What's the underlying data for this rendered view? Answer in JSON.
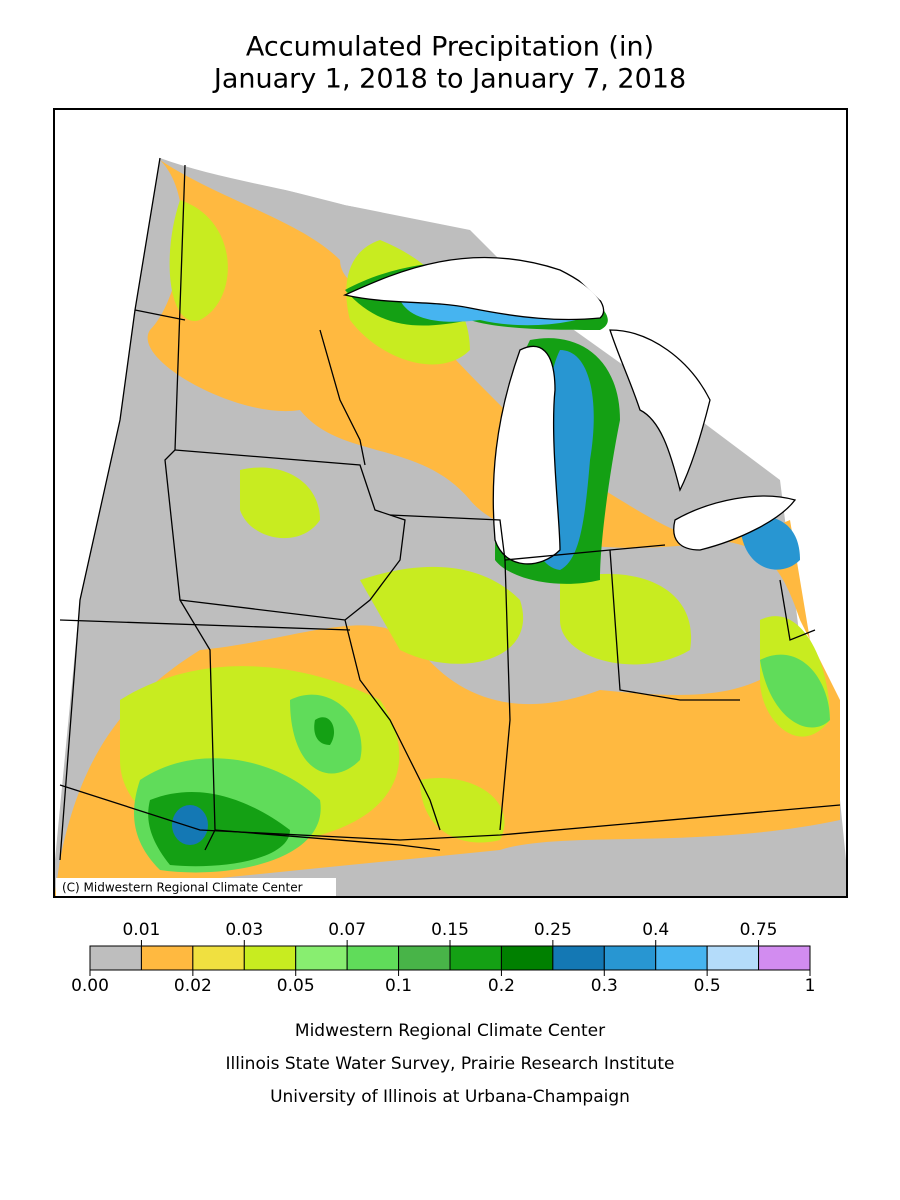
{
  "title": [
    "Accumulated Precipitation (in)",
    "January 1, 2018 to January 7, 2018"
  ],
  "map": {
    "copyright": "(C) Midwestern Regional Climate Center"
  },
  "legend": {
    "boundaries": [
      {
        "value": 0,
        "label": "0.00"
      },
      0.01,
      0.02,
      0.03,
      0.05,
      0.07,
      0.1,
      0.15,
      0.2,
      0.25,
      0.3,
      0.4,
      0.5,
      0.75,
      1
    ],
    "colors": [
      "#bebebe",
      "#ffb940",
      "#f0e040",
      "#c8ec20",
      "#88ee70",
      "#60dc5a",
      "#48b448",
      "#14a014",
      "#008000",
      "#1478b4",
      "#2896d2",
      "#46b4f0",
      "#b4dcfa",
      "#d28cf0"
    ]
  },
  "credits": [
    "Midwestern Regional Climate Center",
    "Illinois State Water Survey, Prairie Research Institute",
    "University of Illinois at Urbana-Champaign"
  ]
}
